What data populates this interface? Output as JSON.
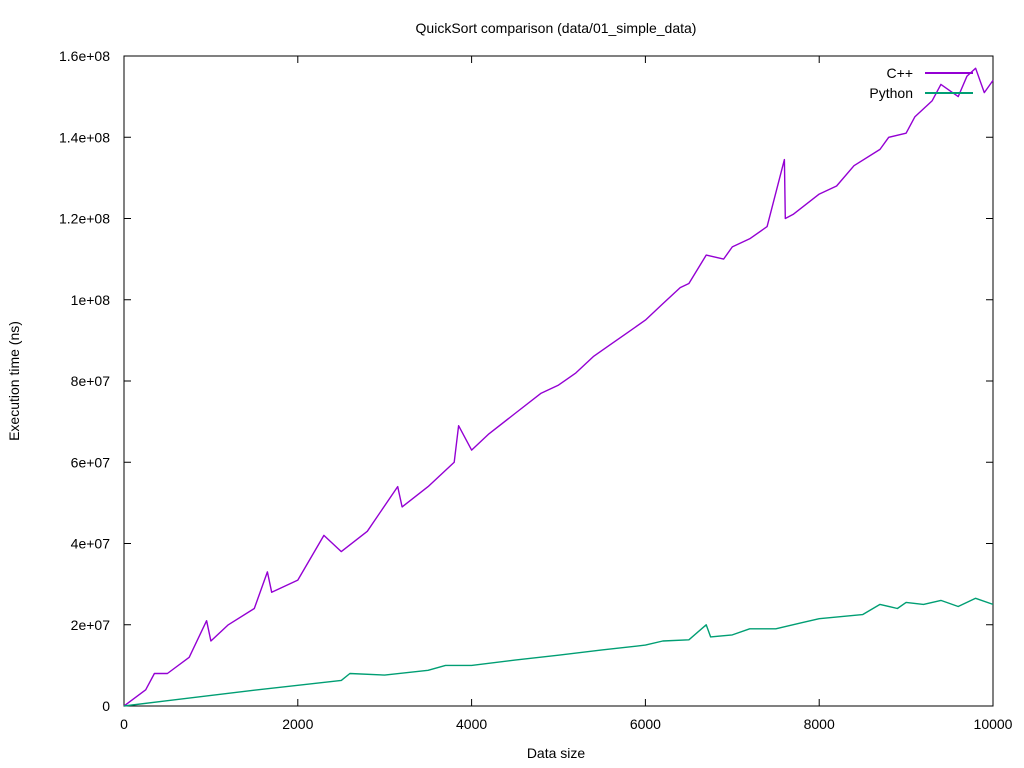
{
  "chart_data": {
    "type": "line",
    "title": "QuickSort comparison (data/01_simple_data)",
    "xlabel": "Data size",
    "ylabel": "Execution time (ns)",
    "xlim": [
      0,
      10000
    ],
    "ylim": [
      0,
      160000000
    ],
    "xticks": [
      0,
      2000,
      4000,
      6000,
      8000,
      10000
    ],
    "xtick_labels": [
      "0",
      "2000",
      "4000",
      "6000",
      "8000",
      "10000"
    ],
    "yticks": [
      0,
      20000000,
      40000000,
      60000000,
      80000000,
      100000000,
      120000000,
      140000000,
      160000000
    ],
    "ytick_labels": [
      "0",
      "2e+07",
      "4e+07",
      "6e+07",
      "8e+07",
      "1e+08",
      "1.2e+08",
      "1.4e+08",
      "1.6e+08"
    ],
    "grid": false,
    "legend_position": "top-right",
    "series": [
      {
        "name": "C++",
        "color": "#9400d3",
        "x": [
          0,
          250,
          350,
          500,
          750,
          950,
          1000,
          1200,
          1500,
          1650,
          1700,
          2000,
          2300,
          2500,
          2800,
          3150,
          3200,
          3500,
          3800,
          3850,
          4000,
          4200,
          4500,
          4800,
          5000,
          5200,
          5400,
          5600,
          5800,
          6000,
          6200,
          6400,
          6500,
          6700,
          6900,
          7000,
          7200,
          7400,
          7600,
          7610,
          7700,
          8000,
          8200,
          8400,
          8700,
          8800,
          9000,
          9100,
          9300,
          9400,
          9600,
          9700,
          9800,
          9900,
          10000
        ],
        "y": [
          0,
          4000000,
          8000000,
          8000000,
          12000000,
          21000000,
          16000000,
          20000000,
          24000000,
          33000000,
          28000000,
          31000000,
          42000000,
          38000000,
          43000000,
          54000000,
          49000000,
          54000000,
          60000000,
          69000000,
          63000000,
          67000000,
          72000000,
          77000000,
          79000000,
          82000000,
          86000000,
          89000000,
          92000000,
          95000000,
          99000000,
          103000000,
          104000000,
          111000000,
          110000000,
          113000000,
          115000000,
          118000000,
          134500000,
          120000000,
          121000000,
          126000000,
          128000000,
          133000000,
          137000000,
          140000000,
          141000000,
          145000000,
          149000000,
          153000000,
          150000000,
          155000000,
          157000000,
          151000000,
          154000000
        ]
      },
      {
        "name": "Python",
        "color": "#009e73",
        "x": [
          0,
          500,
          1000,
          1500,
          2000,
          2500,
          2600,
          3000,
          3500,
          3700,
          4000,
          4500,
          5000,
          5500,
          5800,
          6000,
          6200,
          6500,
          6700,
          6750,
          7000,
          7200,
          7500,
          7800,
          8000,
          8500,
          8700,
          8900,
          9000,
          9200,
          9400,
          9600,
          9800,
          10000
        ],
        "y": [
          0,
          1300000,
          2600000,
          3900000,
          5100000,
          6300000,
          8000000,
          7600000,
          8800000,
          10000000,
          10000000,
          11300000,
          12500000,
          13800000,
          14500000,
          15000000,
          16000000,
          16300000,
          20000000,
          17000000,
          17500000,
          19000000,
          19000000,
          20500000,
          21500000,
          22500000,
          25000000,
          24000000,
          25500000,
          25000000,
          26000000,
          24500000,
          26500000,
          25000000
        ]
      }
    ]
  }
}
